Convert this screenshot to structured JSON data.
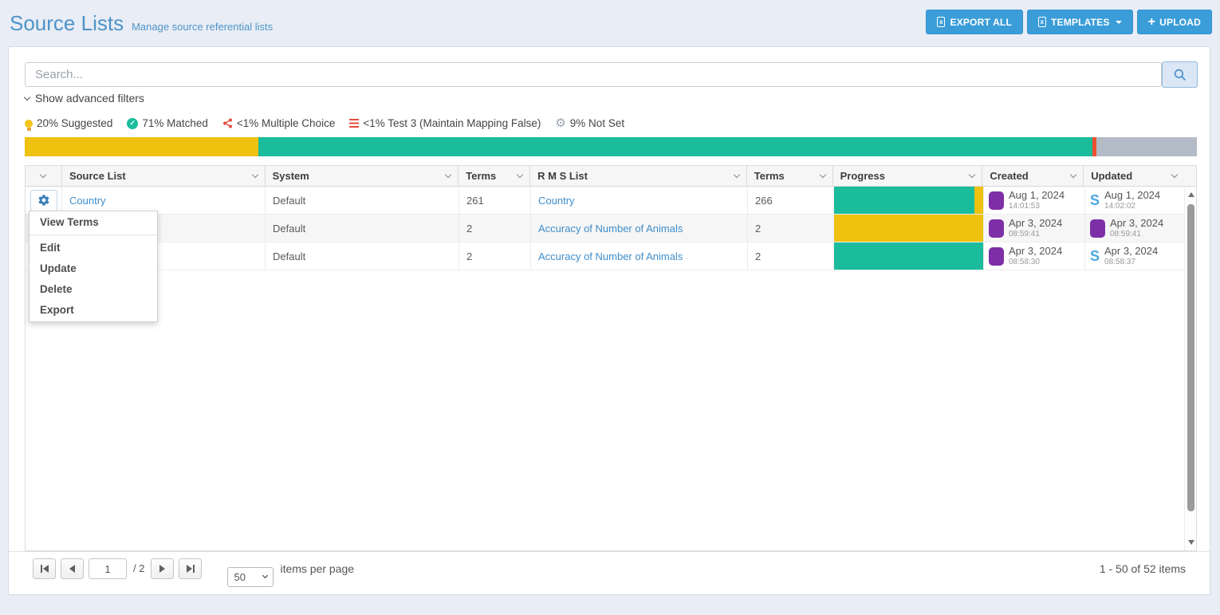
{
  "page": {
    "title": "Source Lists",
    "subtitle": "Manage source referential lists"
  },
  "toolbar": {
    "export_all_label": "EXPORT ALL",
    "templates_label": "TEMPLATES",
    "upload_label": "UPLOAD",
    "accent_color": "#3b9dd8"
  },
  "search": {
    "placeholder": "Search..."
  },
  "filters_toggle_label": "Show advanced filters",
  "legend": {
    "items": [
      {
        "icon": "lightbulb-icon",
        "color": "#f5c51d",
        "label": "20% Suggested"
      },
      {
        "icon": "check-circle-icon",
        "color": "#1abc9c",
        "label": "71% Matched"
      },
      {
        "icon": "share-icon",
        "color": "#e74c3c",
        "label": "<1% Multiple Choice"
      },
      {
        "icon": "bars-icon",
        "color": "#e74c3c",
        "label": "<1% Test 3 (Maintain Mapping False)"
      },
      {
        "icon": "gear-icon",
        "color": "#98a1ab",
        "label": "9% Not Set"
      }
    ]
  },
  "summary_bar": {
    "segments": [
      {
        "name": "suggested",
        "color": "#eec20f",
        "percent": 19.9
      },
      {
        "name": "matched",
        "color": "#1abc9c",
        "percent": 71.2
      },
      {
        "name": "test3",
        "color": "#f1502f",
        "percent": 0.3
      },
      {
        "name": "not-set",
        "color": "#b3bbc7",
        "percent": 8.6
      }
    ]
  },
  "table": {
    "columns": [
      "",
      "Source List",
      "System",
      "Terms",
      "R M S List",
      "Terms",
      "Progress",
      "Created",
      "Updated"
    ],
    "rows": [
      {
        "source_list": "Country",
        "system": "Default",
        "terms": "261",
        "rms_list": "Country",
        "rms_terms": "266",
        "progress": [
          {
            "color": "#1abc9c",
            "percent": 94
          },
          {
            "color": "#eec20f",
            "percent": 6
          }
        ],
        "created_date": "Aug 1, 2024",
        "created_time": "14:01:53",
        "updated_date": "Aug 1, 2024",
        "updated_time": "14:02:02"
      },
      {
        "source_list": "",
        "system": "Default",
        "terms": "2",
        "rms_list": "Accuracy of Number of Animals",
        "rms_terms": "2",
        "progress": [
          {
            "color": "#eec20f",
            "percent": 100
          }
        ],
        "created_date": "Apr 3, 2024",
        "created_time": "08:59:41",
        "updated_date": "Apr 3, 2024",
        "updated_time": "08:59:41"
      },
      {
        "source_list": "",
        "system": "Default",
        "terms": "2",
        "rms_list": "Accuracy of Number of Animals",
        "rms_terms": "2",
        "progress": [
          {
            "color": "#1abc9c",
            "percent": 100
          }
        ],
        "created_date": "Apr 3, 2024",
        "created_time": "08:58:30",
        "updated_date": "Apr 3, 2024",
        "updated_time": "08:58:37"
      }
    ]
  },
  "context_menu": {
    "items": [
      "View Terms",
      "Edit",
      "Update",
      "Delete",
      "Export"
    ]
  },
  "pagination": {
    "current_page": "1",
    "page_total_label": "/ 2",
    "page_size": "50",
    "page_size_label": "items per page",
    "range_label": "1 - 50 of 52 items"
  }
}
